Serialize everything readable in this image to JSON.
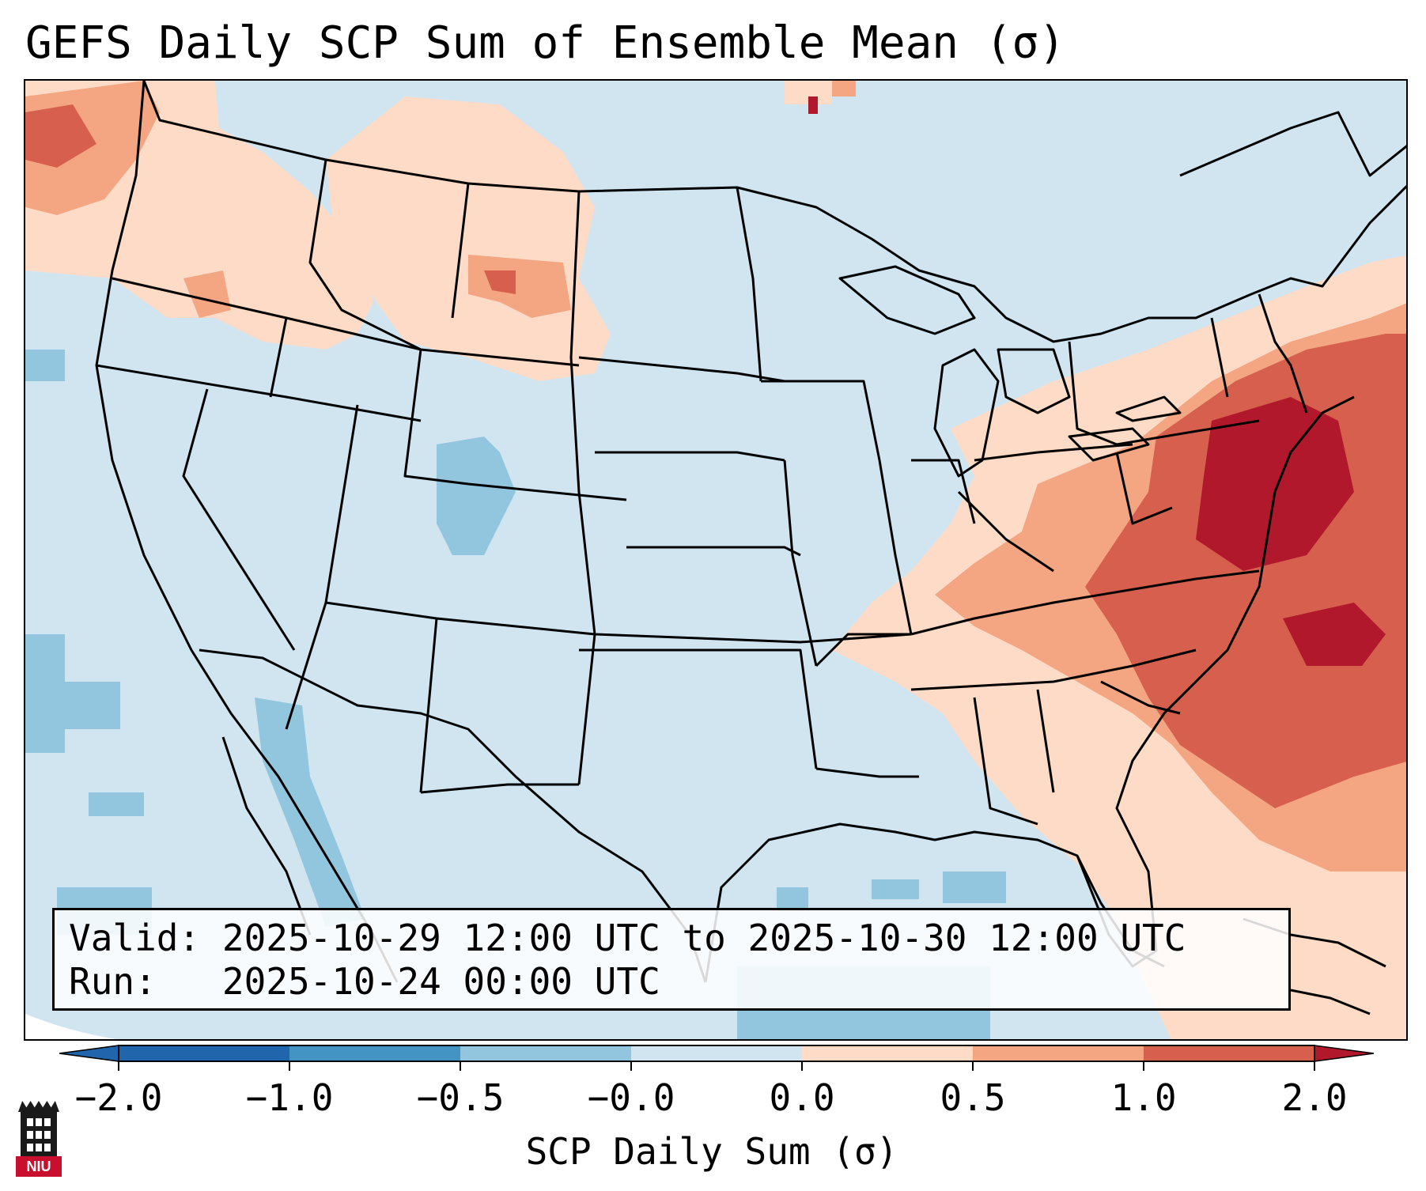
{
  "title": "GEFS Daily SCP Sum of Ensemble Mean (σ)",
  "info": {
    "valid_label": "Valid:",
    "valid_text": "2025-10-29 12:00 UTC to 2025-10-30 12:00 UTC",
    "run_label": "Run:",
    "run_text": "2025-10-24 00:00 UTC"
  },
  "colorbar": {
    "label": "SCP Daily Sum (σ)",
    "ticks": [
      "−2.0",
      "−1.0",
      "−0.5",
      "−0.0",
      "0.0",
      "0.5",
      "1.0",
      "2.0"
    ],
    "colors": [
      "#2166ac",
      "#4393c3",
      "#92c5de",
      "#d1e5f0",
      "#ffffff",
      "#fddbc7",
      "#f4a582",
      "#d6604d",
      "#b2182b"
    ]
  },
  "logo": {
    "text": "NIU"
  },
  "map": {
    "region": "Contiguous United States",
    "field_colors": {
      "neutral_neg": "#d1e5f0",
      "light_neg": "#92c5de",
      "light_pos": "#fddbc7",
      "mid_pos": "#f4a582",
      "high_pos": "#d6604d",
      "max_pos": "#b2182b"
    }
  }
}
